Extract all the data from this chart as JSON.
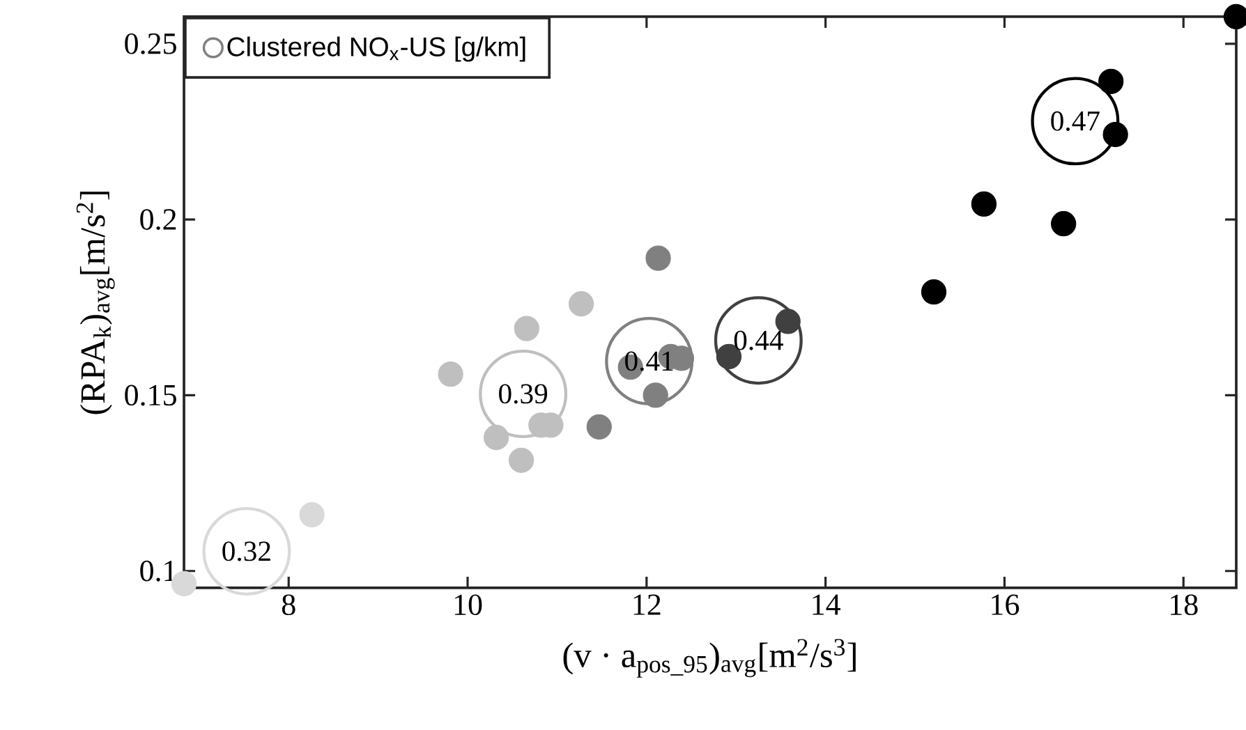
{
  "chart_data": {
    "type": "scatter",
    "xlabel": "(v · a$_{pos_95}$)$_{avg}$[m$^{2}$/s$^{3}$]",
    "ylabel": "(RPA$_{k}$)$_{avg}$[m/s$^{2}$]",
    "xlim": [
      6.83,
      18.59
    ],
    "ylim": [
      0.0952,
      0.2577
    ],
    "xticks": [
      8,
      10,
      12,
      14,
      16,
      18
    ],
    "yticks": [
      0.1,
      0.15,
      0.2,
      0.25
    ],
    "grid": false,
    "legend": "top left",
    "marker": "circle",
    "series": [
      {
        "color": "#d9d9d9",
        "x": [
          6.83,
          8.26
        ],
        "values": [
          0.0964,
          0.116
        ]
      },
      {
        "color": "#bfbfbf",
        "x": [
          9.81,
          10.66,
          11.27,
          10.32,
          10.6,
          10.82,
          10.93
        ],
        "values": [
          0.156,
          0.169,
          0.176,
          0.138,
          0.1315,
          0.1415,
          0.1415
        ]
      },
      {
        "color": "#808080",
        "x": [
          12.13,
          11.47,
          12.27,
          12.39,
          12.1,
          11.82
        ],
        "values": [
          0.189,
          0.141,
          0.161,
          0.1605,
          0.15,
          0.158
        ]
      },
      {
        "color": "#404040",
        "x": [
          13.58,
          12.92
        ],
        "values": [
          0.171,
          0.161
        ]
      },
      {
        "color": "#000000",
        "x": [
          17.19,
          17.24,
          15.77,
          16.66,
          15.21,
          18.59
        ],
        "values": [
          0.2393,
          0.2242,
          0.2044,
          0.1988,
          0.1794,
          0.2577
        ]
      },
      {
        "type": "bubble",
        "name": "Clustered NO$_{x}$-US [g/km]",
        "color": "#808080",
        "colors": [
          "#d9d9d9",
          "#bfbfbf",
          "#808080",
          "#404040",
          "#000000"
        ],
        "x": [
          7.53,
          10.62,
          12.03,
          13.25,
          16.79
        ],
        "values": [
          0.1056,
          0.1504,
          0.1597,
          0.1656,
          0.228
        ],
        "sizes": [
          1,
          1,
          1,
          1,
          1
        ]
      }
    ],
    "annotations": [
      {
        "text": "0.32",
        "x": 7.53,
        "y": 0.1056
      },
      {
        "text": "0.39",
        "x": 10.62,
        "y": 0.1504
      },
      {
        "text": "0.41",
        "x": 12.03,
        "y": 0.1597
      },
      {
        "text": "0.44",
        "x": 13.25,
        "y": 0.1656
      },
      {
        "text": "0.47",
        "x": 16.79,
        "y": 0.228
      }
    ]
  }
}
